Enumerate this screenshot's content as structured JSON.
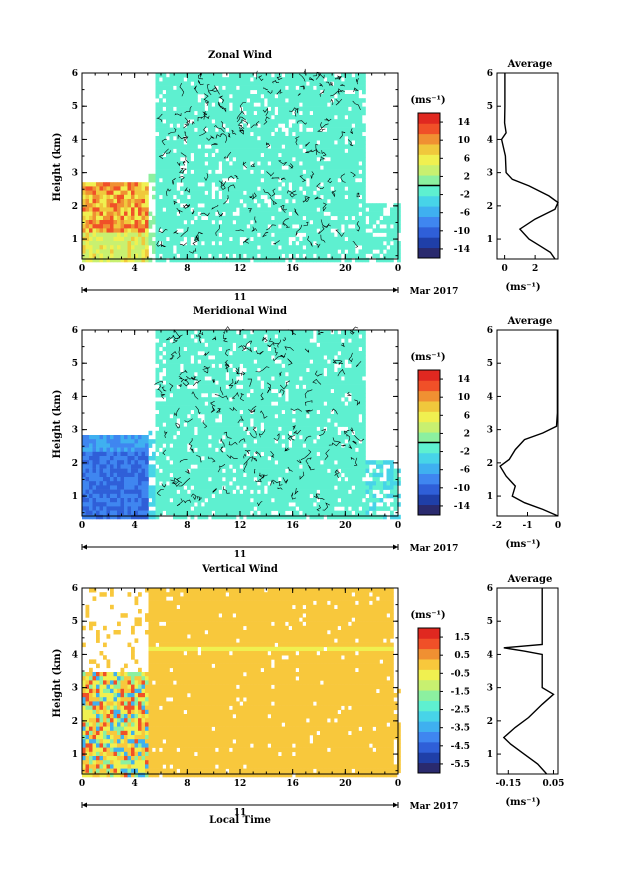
{
  "colors": {
    "zonal_scale": [
      "#2a2a6e",
      "#1f3fa8",
      "#2f5fd8",
      "#3f86f0",
      "#3fb0f0",
      "#47d4e8",
      "#5ef0d0",
      "#8cf0a0",
      "#c8f070",
      "#f0f050",
      "#f0c83c",
      "#f09032",
      "#f05028",
      "#e02820"
    ],
    "vertical_scale": [
      "#2a2a6e",
      "#1f3fa8",
      "#2f5fd8",
      "#3f86f0",
      "#3fb0f0",
      "#47d4e8",
      "#5ef0d0",
      "#8cf0a0",
      "#c8f070",
      "#f0f050",
      "#f8c83c",
      "#f09032",
      "#f05028",
      "#e02820"
    ]
  },
  "chart_data": [
    {
      "type": "heatmap",
      "title": "Zonal Wind",
      "ylabel": "Height (km)",
      "xlim": [
        0,
        24
      ],
      "ylim": [
        0.4,
        6
      ],
      "x_ticks": [
        "0",
        "4",
        "8",
        "12",
        "16",
        "20",
        "0"
      ],
      "y_ticks": [
        "1",
        "2",
        "3",
        "4",
        "5",
        "6"
      ],
      "date_day": "11",
      "date_label": "Mar 2017",
      "colorbar": {
        "label": "(ms⁻¹)",
        "tick_values": [
          "14",
          "10",
          "6",
          "2",
          "-2",
          "-6",
          "-10",
          "-14"
        ],
        "range": [
          -16,
          16
        ]
      },
      "average_profile": {
        "title": "Average",
        "xlabel": "(ms⁻¹)",
        "x_ticks": [
          "0",
          "2"
        ],
        "xlim": [
          -0.5,
          3.5
        ],
        "height_km": [
          0.4,
          0.6,
          0.8,
          1.0,
          1.3,
          1.6,
          1.9,
          2.1,
          2.3,
          2.6,
          2.8,
          3.0,
          3.5,
          4.0,
          4.2,
          4.5,
          5.0,
          5.5,
          6.0
        ],
        "value_ms": [
          3.3,
          3.0,
          2.3,
          1.6,
          1.0,
          2.0,
          3.3,
          3.5,
          2.9,
          1.6,
          0.5,
          0.1,
          0.05,
          -0.2,
          0.1,
          0.0,
          0.02,
          0.02,
          0.02
        ]
      }
    },
    {
      "type": "heatmap",
      "title": "Meridional Wind",
      "ylabel": "Height (km)",
      "xlim": [
        0,
        24
      ],
      "ylim": [
        0.4,
        6
      ],
      "x_ticks": [
        "0",
        "4",
        "8",
        "12",
        "16",
        "20",
        "0"
      ],
      "y_ticks": [
        "1",
        "2",
        "3",
        "4",
        "5",
        "6"
      ],
      "date_day": "11",
      "date_label": "Mar 2017",
      "colorbar": {
        "label": "(ms⁻¹)",
        "tick_values": [
          "14",
          "10",
          "6",
          "2",
          "-2",
          "-6",
          "-10",
          "-14"
        ],
        "range": [
          -16,
          16
        ]
      },
      "average_profile": {
        "title": "Average",
        "xlabel": "(ms⁻¹)",
        "x_ticks": [
          "-2",
          "-1",
          "0"
        ],
        "xlim": [
          -2,
          0
        ],
        "height_km": [
          0.4,
          0.6,
          0.8,
          1.0,
          1.3,
          1.6,
          1.9,
          2.1,
          2.4,
          2.7,
          2.9,
          3.1,
          3.5,
          4.0,
          5.0,
          6.0
        ],
        "value_ms": [
          0.0,
          -0.5,
          -1.1,
          -1.5,
          -1.4,
          -1.7,
          -1.9,
          -1.6,
          -1.4,
          -1.1,
          -0.5,
          -0.05,
          -0.02,
          -0.02,
          -0.02,
          -0.02
        ]
      }
    },
    {
      "type": "heatmap",
      "title": "Vertical Wind",
      "xlabel": "Local Time",
      "ylabel": "Height (km)",
      "xlim": [
        0,
        24
      ],
      "ylim": [
        0.4,
        6
      ],
      "x_ticks": [
        "0",
        "4",
        "8",
        "12",
        "16",
        "20",
        "0"
      ],
      "y_ticks": [
        "1",
        "2",
        "3",
        "4",
        "5",
        "6"
      ],
      "date_day": "11",
      "date_label": "Mar 2017",
      "colorbar": {
        "label": "(ms⁻¹)",
        "tick_values": [
          "1.5",
          "0.5",
          "-0.5",
          "-1.5",
          "-2.5",
          "-3.5",
          "-4.5",
          "-5.5"
        ],
        "range": [
          -6,
          2
        ]
      },
      "average_profile": {
        "title": "Average",
        "xlabel": "(ms⁻¹)",
        "x_ticks": [
          "-0.15",
          "0.05"
        ],
        "xlim": [
          -0.2,
          0.07
        ],
        "height_km": [
          0.4,
          0.7,
          1.0,
          1.3,
          1.5,
          1.8,
          2.1,
          2.5,
          2.8,
          3.0,
          3.5,
          4.0,
          4.1,
          4.2,
          4.3,
          4.5,
          5.0,
          5.5,
          6.0
        ],
        "value_ms": [
          0.02,
          -0.02,
          -0.08,
          -0.14,
          -0.17,
          -0.12,
          -0.06,
          0.0,
          0.05,
          0.0,
          0.0,
          0.0,
          -0.08,
          -0.17,
          0.0,
          0.0,
          0.0,
          0.0,
          0.0
        ]
      }
    }
  ]
}
